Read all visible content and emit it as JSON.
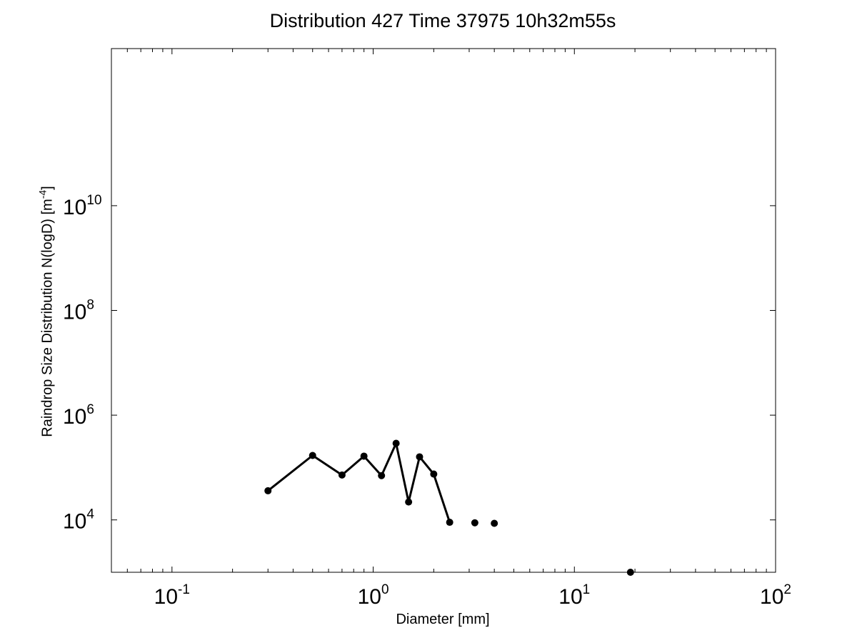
{
  "chart_data": {
    "type": "line",
    "title": "Distribution 427 Time 37975 10h32m55s",
    "xlabel": "Diameter [mm]",
    "ylabel": {
      "text": "Raindrop Size Distribution N(logD) [m",
      "unit_exponent": "-4",
      "suffix": "]"
    },
    "xscale": "log",
    "yscale": "log",
    "xlim": [
      0.05,
      100
    ],
    "ylim": [
      1000,
      10000000000000
    ],
    "grid": false,
    "x_ticks": [
      {
        "value": 0.1,
        "base": "10",
        "exp": "-1"
      },
      {
        "value": 1,
        "base": "10",
        "exp": "0"
      },
      {
        "value": 10,
        "base": "10",
        "exp": "1"
      },
      {
        "value": 100,
        "base": "10",
        "exp": "2"
      }
    ],
    "y_ticks": [
      {
        "value": 10000,
        "base": "10",
        "exp": "4"
      },
      {
        "value": 1000000,
        "base": "10",
        "exp": "6"
      },
      {
        "value": 100000000,
        "base": "10",
        "exp": "8"
      },
      {
        "value": 10000000000,
        "base": "10",
        "exp": "10"
      }
    ],
    "series": [
      {
        "line_color": "#000000",
        "points": [
          {
            "x": 0.3,
            "y": 36000
          },
          {
            "x": 0.5,
            "y": 170000
          },
          {
            "x": 0.7,
            "y": 72000
          },
          {
            "x": 0.9,
            "y": 165000
          },
          {
            "x": 1.1,
            "y": 70000
          },
          {
            "x": 1.3,
            "y": 290000
          },
          {
            "x": 1.5,
            "y": 22000
          },
          {
            "x": 1.7,
            "y": 160000
          },
          {
            "x": 2.0,
            "y": 75000
          },
          {
            "x": 2.4,
            "y": 9000
          }
        ]
      },
      {
        "line_color": "none",
        "points": [
          {
            "x": 3.2,
            "y": 8800
          },
          {
            "x": 4.0,
            "y": 8600
          },
          {
            "x": 19.0,
            "y": 1000
          }
        ]
      }
    ]
  }
}
